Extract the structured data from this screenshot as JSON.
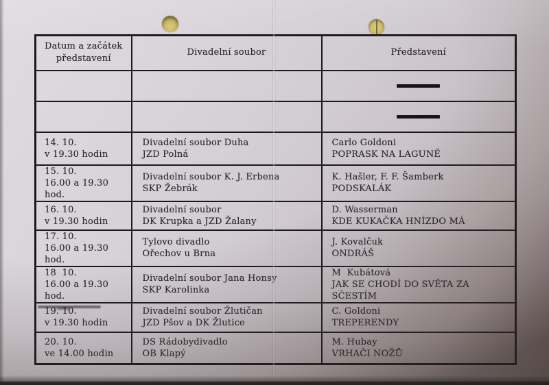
{
  "card": {
    "headers": {
      "date": "Datum a začátek\npředstavení",
      "ensemble": "Divadelní soubor",
      "performance": "Představení"
    },
    "empty_rows_with_dash": 2,
    "rows": [
      {
        "date": "14. 10.\nv 19.30 hodin",
        "ensemble": "Divadelní soubor Duha\nJZD Polná",
        "performance": "Carlo Goldoni\nPOPRASK NA LAGUNĚ"
      },
      {
        "date": "15. 10.\n16.00 a 19.30 hod.",
        "ensemble": "Divadelní soubor K. J. Erbena\nSKP Žebrák",
        "performance": "K. Hašler, F. F. Šamberk\nPODSKALÁK"
      },
      {
        "date": "16. 10.\nv 19.30 hodin",
        "ensemble": "Divadelní soubor\nDK Krupka a JZD Žalany",
        "performance": "D. Wasserman\nKDE KUKAČKA HNÍZDO MÁ"
      },
      {
        "date": "17. 10.\n16.00 a 19.30 hod.",
        "ensemble": "Tylovo divadlo\nOřechov u Brna",
        "performance": "J. Kovalčuk\nONDRÁŠ"
      },
      {
        "date": "18  10.\n16.00 a 19.30 hod.",
        "ensemble": "Divadelní soubor Jana Honsy\nSKP Karolinka",
        "performance": "M  Kubátová\nJAK SE CHODÍ DO SVĚTA ZA SČESTÍM"
      },
      {
        "date": "19. 10.\nv 19.30 hodin",
        "ensemble": "Divadelní soubor Žlutičan\nJZD Pšov a DK Žlutice",
        "performance": "C. Goldoni\nTREPERENDY"
      },
      {
        "date": "20. 10.\nve 14.00 hodin",
        "ensemble": "DS Rádobydivadlo\nOB Klapý",
        "performance": "M. Hubay\nVRHAČI NOŽŮ"
      }
    ],
    "colors": {
      "paper": "#d6d2d8",
      "ink": "#29262e",
      "table_border": "#1a1920",
      "hole_brass": "#c9b65c",
      "backdrop": "#343031"
    }
  }
}
